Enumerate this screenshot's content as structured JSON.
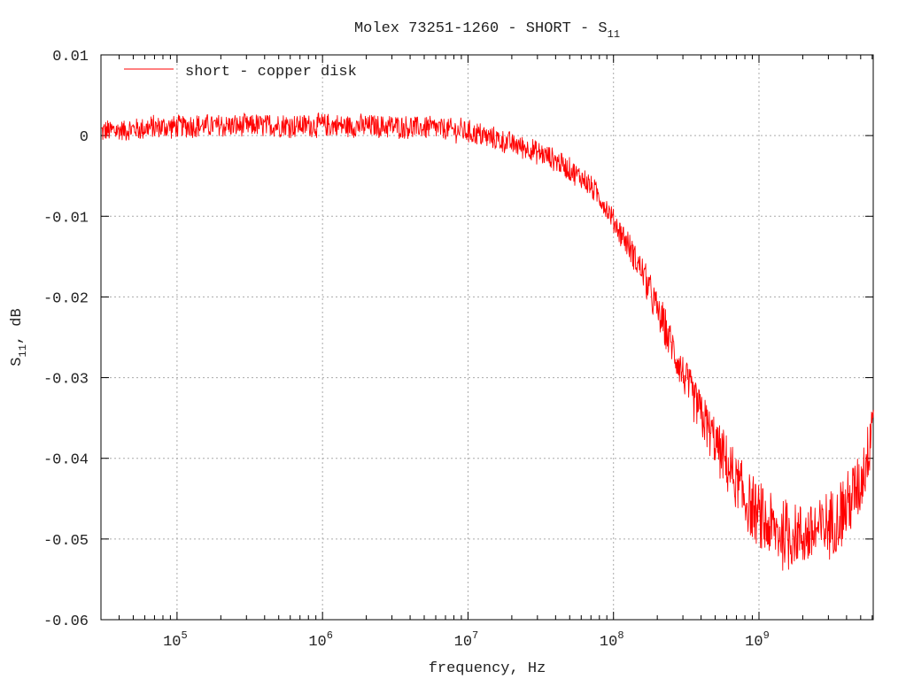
{
  "chart_data": {
    "type": "line",
    "title": "Molex 73251-1260 - SHORT - S",
    "title_subscript": "11",
    "xlabel": "frequency, Hz",
    "ylabel": "S",
    "ylabel_subscript": "11",
    "ylabel_suffix": ", dB",
    "xscale": "log",
    "xlim": [
      30000,
      6100000000
    ],
    "ylim": [
      -0.06,
      0.01
    ],
    "grid": true,
    "legend_position": "top-left",
    "x_ticks": [
      {
        "value": 100000,
        "base": "10",
        "exp": "5"
      },
      {
        "value": 1000000,
        "base": "10",
        "exp": "6"
      },
      {
        "value": 10000000,
        "base": "10",
        "exp": "7"
      },
      {
        "value": 100000000,
        "base": "10",
        "exp": "8"
      },
      {
        "value": 1000000000,
        "base": "10",
        "exp": "9"
      }
    ],
    "y_ticks": [
      {
        "value": 0.01,
        "label": "0.01"
      },
      {
        "value": 0,
        "label": "0"
      },
      {
        "value": -0.01,
        "label": "-0.01"
      },
      {
        "value": -0.02,
        "label": "-0.02"
      },
      {
        "value": -0.03,
        "label": "-0.03"
      },
      {
        "value": -0.04,
        "label": "-0.04"
      },
      {
        "value": -0.05,
        "label": "-0.05"
      },
      {
        "value": -0.06,
        "label": "-0.06"
      }
    ],
    "series": [
      {
        "name": "short - copper disk",
        "color": "#ff0000",
        "x_log10": [
          4.48,
          5.0,
          5.5,
          6.0,
          6.5,
          6.8,
          7.0,
          7.2,
          7.4,
          7.6,
          7.8,
          7.9,
          8.0,
          8.1,
          8.2,
          8.3,
          8.4,
          8.5,
          8.6,
          8.7,
          8.8,
          8.9,
          9.0,
          9.1,
          9.2,
          9.3,
          9.4,
          9.5,
          9.6,
          9.65,
          9.7,
          9.75,
          9.787
        ],
        "y": [
          0.0005,
          0.0012,
          0.0012,
          0.0013,
          0.0011,
          0.0009,
          0.0005,
          -0.0005,
          -0.0015,
          -0.003,
          -0.0055,
          -0.0075,
          -0.0105,
          -0.0135,
          -0.017,
          -0.0215,
          -0.026,
          -0.0305,
          -0.0345,
          -0.038,
          -0.0415,
          -0.045,
          -0.0475,
          -0.049,
          -0.0497,
          -0.0495,
          -0.049,
          -0.048,
          -0.046,
          -0.0445,
          -0.043,
          -0.039,
          -0.033
        ]
      }
    ]
  }
}
